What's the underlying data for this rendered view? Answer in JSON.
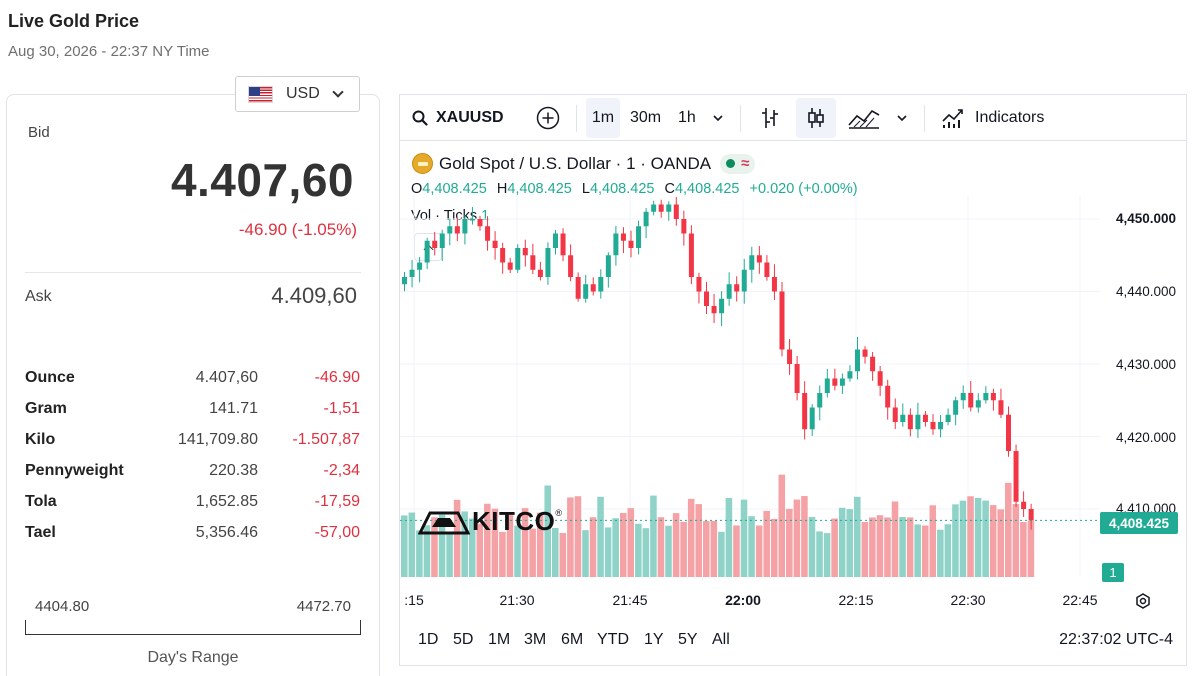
{
  "page": {
    "title": "Live Gold Price",
    "subtitle": "Aug 30, 2026 - 22:37 NY Time"
  },
  "currency": {
    "selected": "USD",
    "flag_icon": "us-flag-icon"
  },
  "quote": {
    "bid_label": "Bid",
    "bid": "4.407,60",
    "change": "-46.90 (-1.05%)",
    "ask_label": "Ask",
    "ask": "4.409,60"
  },
  "units": [
    {
      "name": "Ounce",
      "price": "4.407,60",
      "change": "-46.90"
    },
    {
      "name": "Gram",
      "price": "141.71",
      "change": "-1,51"
    },
    {
      "name": "Kilo",
      "price": "141,709.80",
      "change": "-1.507,87"
    },
    {
      "name": "Pennyweight",
      "price": "220.38",
      "change": "-2,34"
    },
    {
      "name": "Tola",
      "price": "1,652.85",
      "change": "-17,59"
    },
    {
      "name": "Tael",
      "price": "5,356.46",
      "change": "-57,00"
    }
  ],
  "days_range": {
    "low": "4404.80",
    "high": "4472.70",
    "label": "Day's Range"
  },
  "toolbar": {
    "symbol": "XAUUSD",
    "intervals": [
      "1m",
      "30m",
      "1h"
    ],
    "active_interval": "1m",
    "indicators_label": "Indicators"
  },
  "legend": {
    "title": "Gold Spot / U.S. Dollar · 1 · OANDA",
    "open_label": "O",
    "open": "4,408.425",
    "high_label": "H",
    "high": "4,408.425",
    "low_label": "L",
    "low": "4,408.425",
    "close_label": "C",
    "close": "4,408.425",
    "change": "+0.020 (+0.00%)",
    "volume_label": "Vol · Ticks",
    "volume_value": "1"
  },
  "price_axis": {
    "labels": [
      "4,450.000",
      "4,440.000",
      "4,430.000",
      "4,420.000",
      "4,410.000"
    ],
    "current_price": "4,408.425",
    "current_volume": "1"
  },
  "time_axis": {
    "labels": [
      ":15",
      "21:30",
      "21:45",
      "22:00",
      "22:15",
      "22:30",
      "22:45"
    ],
    "bold_label": "22:00"
  },
  "ranges": [
    "1D",
    "5D",
    "1M",
    "3M",
    "6M",
    "YTD",
    "1Y",
    "5Y",
    "All"
  ],
  "clock": "22:37:02 UTC-4",
  "watermark": "KITCO",
  "colors": {
    "up": "#22ab94",
    "down": "#f23645",
    "up_volume": "#8fd3c8",
    "down_volume": "#f4a2a6",
    "negative_text": "#e0303f"
  },
  "chart_data": {
    "type": "candlestick",
    "interval": "1 minute",
    "x_range": [
      "21:16",
      "22:37"
    ],
    "ylim": [
      4404.8,
      4453
    ],
    "close_series": [
      4442,
      4443,
      4444,
      4447,
      4446,
      4448,
      4449,
      4448,
      4450,
      4450,
      4449,
      4447,
      4446,
      4444,
      4443,
      4446,
      4445,
      4443,
      4442,
      4446,
      4448,
      4445,
      4442,
      4439,
      4441,
      4440,
      4442,
      4445,
      4448,
      4447,
      4446,
      4449,
      4451,
      4452,
      4451,
      4452,
      4450,
      4448,
      4442,
      4440,
      4438,
      4437,
      4439,
      4441,
      4440,
      4443,
      4445,
      4444,
      4442,
      4440,
      4432,
      4430,
      4426,
      4421,
      4424,
      4426,
      4428,
      4427,
      4428,
      4429,
      4432,
      4431,
      4429,
      4427,
      4424,
      4422,
      4423,
      4421,
      4423,
      4422,
      4421,
      4422,
      4423,
      4425,
      4426,
      4424,
      4425,
      4426,
      4425,
      4423,
      4418,
      4411,
      4410,
      4408.425
    ]
  }
}
